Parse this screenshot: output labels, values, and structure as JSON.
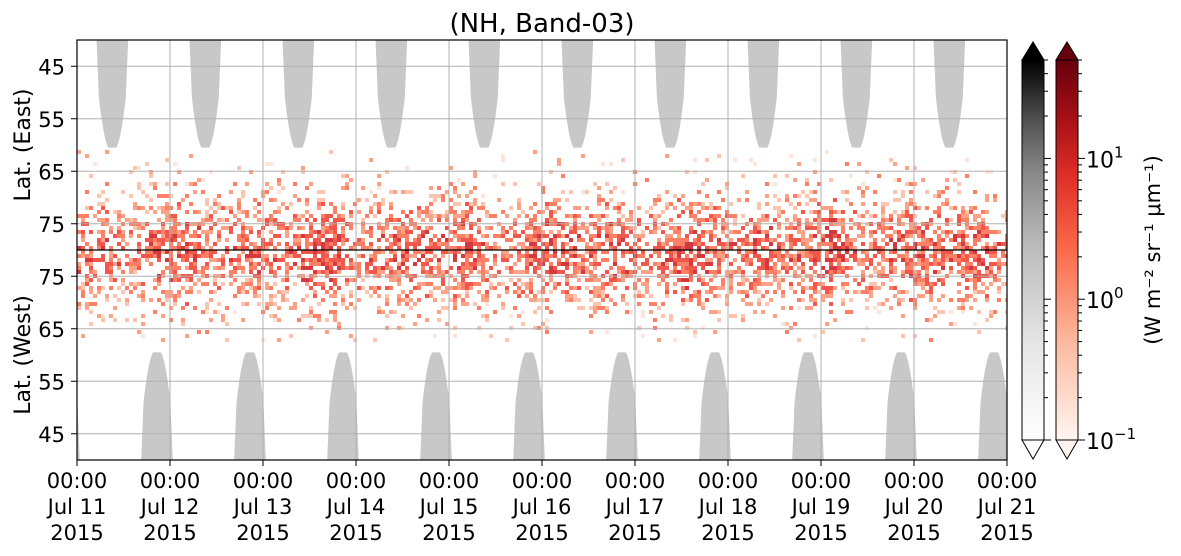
{
  "chart_data": {
    "type": "heatmap",
    "title": "(NH, Band-03)",
    "top_panel": {
      "ylabel": "Lat. (East)",
      "yticks": [
        45,
        55,
        65,
        75
      ],
      "ylim": [
        80,
        40
      ]
    },
    "bottom_panel": {
      "ylabel": "Lat. (West)",
      "yticks": [
        75,
        65,
        55,
        45
      ],
      "ylim": [
        80,
        40
      ]
    },
    "x_tick_labels": [
      {
        "time": "00:00",
        "date": "Jul 11",
        "year": "2015"
      },
      {
        "time": "00:00",
        "date": "Jul 12",
        "year": "2015"
      },
      {
        "time": "00:00",
        "date": "Jul 13",
        "year": "2015"
      },
      {
        "time": "00:00",
        "date": "Jul 14",
        "year": "2015"
      },
      {
        "time": "00:00",
        "date": "Jul 15",
        "year": "2015"
      },
      {
        "time": "00:00",
        "date": "Jul 16",
        "year": "2015"
      },
      {
        "time": "00:00",
        "date": "Jul 17",
        "year": "2015"
      },
      {
        "time": "00:00",
        "date": "Jul 18",
        "year": "2015"
      },
      {
        "time": "00:00",
        "date": "Jul 19",
        "year": "2015"
      },
      {
        "time": "00:00",
        "date": "Jul 20",
        "year": "2015"
      },
      {
        "time": "00:00",
        "date": "Jul 21",
        "year": "2015"
      }
    ],
    "colorbar": {
      "scale": "log",
      "range": [
        0.1,
        50
      ],
      "label": "(W m⁻² sr⁻¹ μm⁻¹)",
      "ticks": [
        {
          "base": "10",
          "exp": "1"
        },
        {
          "base": "10",
          "exp": "0"
        },
        {
          "base": "10",
          "exp": "−1"
        }
      ],
      "colormaps": [
        "Greys",
        "Reds"
      ]
    },
    "daylight_mask_color": "#c8c8c8",
    "grid": true
  }
}
